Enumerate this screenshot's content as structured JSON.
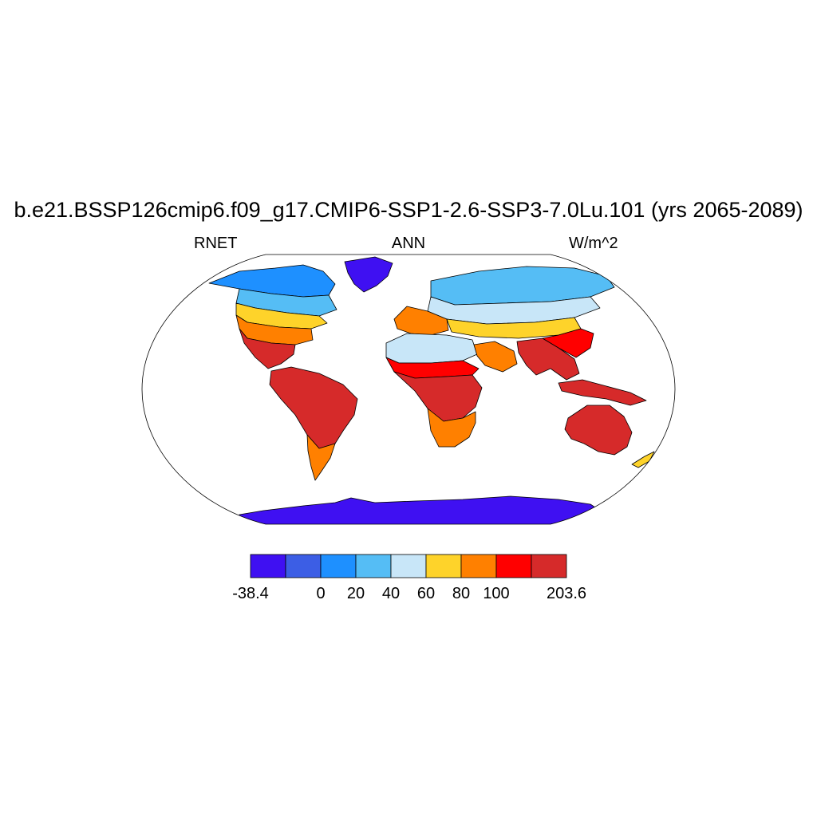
{
  "title": "b.e21.BSSP126cmip6.f09_g17.CMIP6-SSP1-2.6-SSP3-7.0Lu.101 (yrs 2065-2089)",
  "subtitles": {
    "left": "RNET",
    "center": "ANN",
    "right": "W/m^2"
  },
  "colorbar": {
    "colors": [
      "#3f10f2",
      "#3c5ee5",
      "#1e90ff",
      "#55bdf5",
      "#c8e6f8",
      "#fed32a",
      "#ff8000",
      "#ff0000",
      "#d62a2a"
    ],
    "labels": [
      "-38.4",
      "",
      "0",
      "20",
      "40",
      "60",
      "80",
      "100",
      "",
      "203.6"
    ]
  },
  "map": {
    "projection": "robinson",
    "variable": "RNET",
    "regions": [
      {
        "name": "antarctica",
        "level": 0
      },
      {
        "name": "greenland",
        "level": 0
      },
      {
        "name": "canada-arctic",
        "level": 2
      },
      {
        "name": "canada-south",
        "level": 3
      },
      {
        "name": "usa-north",
        "level": 5
      },
      {
        "name": "usa-south",
        "level": 6
      },
      {
        "name": "mexico-central-america",
        "level": 8
      },
      {
        "name": "south-america",
        "level": 8
      },
      {
        "name": "patagonia",
        "level": 6
      },
      {
        "name": "siberia",
        "level": 3
      },
      {
        "name": "russia-south",
        "level": 4
      },
      {
        "name": "europe",
        "level": 6
      },
      {
        "name": "central-asia",
        "level": 5
      },
      {
        "name": "sahara",
        "level": 4
      },
      {
        "name": "sahel",
        "level": 7
      },
      {
        "name": "tropical-africa",
        "level": 8
      },
      {
        "name": "southern-africa",
        "level": 6
      },
      {
        "name": "arabia",
        "level": 6
      },
      {
        "name": "india-southeast-asia",
        "level": 8
      },
      {
        "name": "china",
        "level": 7
      },
      {
        "name": "maritime-continent",
        "level": 8
      },
      {
        "name": "australia",
        "level": 8
      },
      {
        "name": "new-zealand",
        "level": 5
      }
    ]
  }
}
